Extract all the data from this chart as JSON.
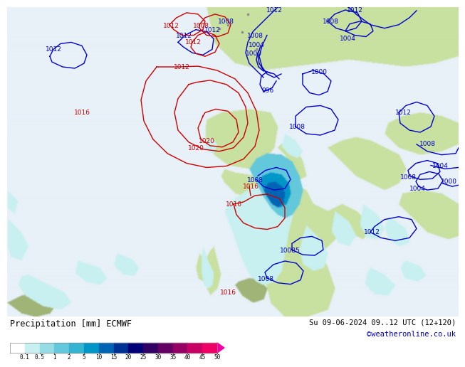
{
  "title_left": "Precipitation [mm] ECMWF",
  "title_right": "Su 09-06-2024 09..12 UTC (12+120)",
  "watermark": "©weatheronline.co.uk",
  "colorbar_labels": [
    "0.1",
    "0.5",
    "1",
    "2",
    "5",
    "10",
    "15",
    "20",
    "25",
    "30",
    "35",
    "40",
    "45",
    "50"
  ],
  "colorbar_colors": [
    "#ffffff",
    "#c8f0f0",
    "#96dce6",
    "#64c8dc",
    "#32b4d2",
    "#0096c8",
    "#0064b4",
    "#003296",
    "#000078",
    "#320064",
    "#640064",
    "#960064",
    "#c80064",
    "#f00064",
    "#f000a0"
  ],
  "ocean_color": "#e8f0f8",
  "land_color": "#c8e0a0",
  "precip_light": "#c8f0f0",
  "precip_mid": "#64c8dc",
  "precip_dark": "#0096c8",
  "precip_deep": "#003296",
  "label_fontsize": 6.5,
  "title_fontsize": 8.5,
  "watermark_fontsize": 7.5,
  "watermark_color": "#0000cc",
  "bottom_bg": "#f0f0f0"
}
